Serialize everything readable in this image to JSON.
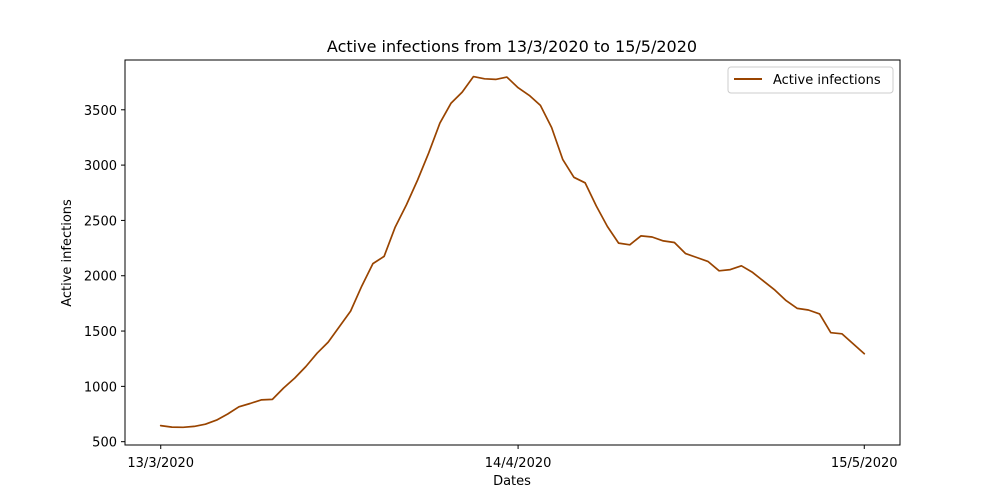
{
  "chart_data": {
    "type": "line",
    "title": "Active infections from 13/3/2020 to 15/5/2020",
    "xlabel": "Dates",
    "ylabel": "Active infections",
    "x_ticks": [
      {
        "index": 0,
        "label": "13/3/2020"
      },
      {
        "index": 32,
        "label": "14/4/2020"
      },
      {
        "index": 63,
        "label": "15/5/2020"
      }
    ],
    "y_ticks": [
      500,
      1000,
      1500,
      2000,
      2500,
      3000,
      3500
    ],
    "ylim": [
      470,
      3950
    ],
    "xlim": [
      -3.2,
      66.2
    ],
    "grid": false,
    "legend_position": "top-right",
    "series": [
      {
        "name": "Active infections",
        "color": "#994400",
        "values": [
          645,
          632,
          630,
          638,
          658,
          695,
          750,
          815,
          845,
          878,
          882,
          985,
          1075,
          1180,
          1300,
          1400,
          1540,
          1680,
          1905,
          2110,
          2175,
          2440,
          2640,
          2865,
          3110,
          3380,
          3560,
          3660,
          3800,
          3780,
          3775,
          3795,
          3700,
          3630,
          3540,
          3340,
          3050,
          2890,
          2840,
          2630,
          2445,
          2295,
          2280,
          2360,
          2350,
          2315,
          2300,
          2200,
          2165,
          2130,
          2045,
          2055,
          2090,
          2030,
          1950,
          1870,
          1775,
          1705,
          1690,
          1655,
          1485,
          1475,
          1385,
          1295
        ]
      }
    ]
  }
}
